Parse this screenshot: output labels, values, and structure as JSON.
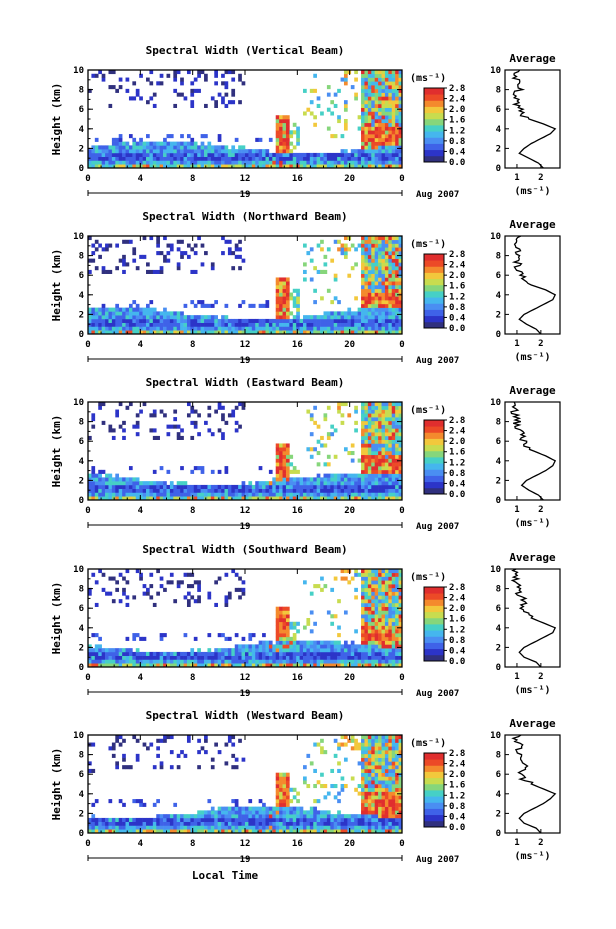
{
  "figure": {
    "xlabel_bottom": "Local Time",
    "date_label": "Aug 2007",
    "day_label": "19",
    "time_ticks": [
      "0",
      "4",
      "8",
      "12",
      "16",
      "20",
      "0"
    ],
    "height_ticks": [
      "0",
      "2",
      "4",
      "6",
      "8",
      "10"
    ],
    "ylabel": "Height (km)",
    "colorbar_unit": "(ms⁻¹)",
    "colorbar_ticks": [
      "0.0",
      "0.4",
      "0.8",
      "1.2",
      "1.6",
      "2.0",
      "2.4",
      "2.8"
    ],
    "avg_title": "Average",
    "avg_xlabel": "(ms⁻¹)",
    "avg_xticks": [
      "1",
      "2"
    ],
    "colorscale": [
      "#30307e",
      "#2c34c8",
      "#3f62e8",
      "#4a8ef2",
      "#45b6ee",
      "#46d0c6",
      "#86d67b",
      "#c8dc4f",
      "#f2c83c",
      "#f48a2d",
      "#ec4a27",
      "#e02e2e"
    ]
  },
  "chart_data": [
    {
      "type": "heatmap",
      "title": "Spectral Width (Vertical Beam)",
      "xlabel": "Local Time",
      "ylabel": "Height (km)",
      "xlim": [
        0,
        24
      ],
      "ylim": [
        0,
        10
      ],
      "colorbar": {
        "label": "(ms⁻¹)",
        "range": [
          0.0,
          2.8
        ]
      },
      "average_profile": {
        "xlim": [
          0.5,
          2.8
        ],
        "height": [
          0,
          0.5,
          1,
          1.5,
          2,
          2.5,
          3,
          3.5,
          4,
          4.5,
          5,
          5.5,
          6,
          6.5,
          7,
          7.5,
          8,
          8.5,
          9,
          9.5,
          10
        ],
        "value": [
          2.1,
          1.9,
          1.5,
          1.1,
          1.3,
          1.6,
          2.0,
          2.4,
          2.6,
          2.1,
          1.5,
          1.2,
          1.1,
          1.0,
          1.0,
          0.9,
          1.1,
          0.9,
          1.0,
          0.9,
          1.2
        ]
      }
    },
    {
      "type": "heatmap",
      "title": "Spectral Width (Northward Beam)",
      "xlabel": "Local Time",
      "ylabel": "Height (km)",
      "xlim": [
        0,
        24
      ],
      "ylim": [
        0,
        10
      ],
      "colorbar": {
        "label": "(ms⁻¹)",
        "range": [
          0.0,
          2.8
        ]
      },
      "average_profile": {
        "xlim": [
          0.5,
          2.8
        ],
        "height": [
          0,
          0.5,
          1,
          1.5,
          2,
          2.5,
          3,
          3.5,
          4,
          4.5,
          5,
          5.5,
          6,
          6.5,
          7,
          7.5,
          8,
          8.5,
          9,
          9.5,
          10
        ],
        "value": [
          2.0,
          1.8,
          1.4,
          1.1,
          1.3,
          1.7,
          2.1,
          2.5,
          2.6,
          2.2,
          1.6,
          1.3,
          1.2,
          1.0,
          1.1,
          0.9,
          1.2,
          1.0,
          0.9,
          1.0,
          1.1
        ]
      }
    },
    {
      "type": "heatmap",
      "title": "Spectral Width (Eastward Beam)",
      "xlabel": "Local Time",
      "ylabel": "Height (km)",
      "xlim": [
        0,
        24
      ],
      "ylim": [
        0,
        10
      ],
      "colorbar": {
        "label": "(ms⁻¹)",
        "range": [
          0.0,
          2.8
        ]
      },
      "average_profile": {
        "xlim": [
          0.5,
          2.8
        ],
        "height": [
          0,
          0.5,
          1,
          1.5,
          2,
          2.5,
          3,
          3.5,
          4,
          4.5,
          5,
          5.5,
          6,
          6.5,
          7,
          7.5,
          8,
          8.5,
          9,
          9.5,
          10
        ],
        "value": [
          2.1,
          1.9,
          1.5,
          1.2,
          1.4,
          1.8,
          2.2,
          2.5,
          2.6,
          2.2,
          1.7,
          1.4,
          1.3,
          1.2,
          1.1,
          1.0,
          1.0,
          0.9,
          0.9,
          0.8,
          0.8
        ]
      }
    },
    {
      "type": "heatmap",
      "title": "Spectral Width (Southward Beam)",
      "xlabel": "Local Time",
      "ylabel": "Height (km)",
      "xlim": [
        0,
        24
      ],
      "ylim": [
        0,
        10
      ],
      "colorbar": {
        "label": "(ms⁻¹)",
        "range": [
          0.0,
          2.8
        ]
      },
      "average_profile": {
        "xlim": [
          0.5,
          2.8
        ],
        "height": [
          0,
          0.5,
          1,
          1.5,
          2,
          2.5,
          3,
          3.5,
          4,
          4.5,
          5,
          5.5,
          6,
          6.5,
          7,
          7.5,
          8,
          8.5,
          9,
          9.5,
          10
        ],
        "value": [
          2.0,
          1.8,
          1.3,
          1.1,
          1.3,
          1.7,
          2.1,
          2.5,
          2.6,
          2.1,
          1.6,
          1.4,
          1.3,
          1.3,
          1.2,
          1.1,
          1.1,
          1.0,
          0.9,
          0.9,
          0.8
        ]
      }
    },
    {
      "type": "heatmap",
      "title": "Spectral Width (Westward Beam)",
      "xlabel": "Local Time",
      "ylabel": "Height (km)",
      "xlim": [
        0,
        24
      ],
      "ylim": [
        0,
        10
      ],
      "colorbar": {
        "label": "(ms⁻¹)",
        "range": [
          0.0,
          2.8
        ]
      },
      "average_profile": {
        "xlim": [
          0.5,
          2.8
        ],
        "height": [
          0,
          0.5,
          1,
          1.5,
          2,
          2.5,
          3,
          3.5,
          4,
          4.5,
          5,
          5.5,
          6,
          6.5,
          7,
          7.5,
          8,
          8.5,
          9,
          9.5,
          10
        ],
        "value": [
          2.0,
          1.8,
          1.3,
          1.1,
          1.3,
          1.7,
          2.1,
          2.4,
          2.6,
          2.1,
          1.6,
          1.3,
          1.2,
          1.2,
          1.3,
          1.1,
          1.2,
          1.0,
          1.1,
          1.0,
          1.0
        ]
      }
    }
  ]
}
